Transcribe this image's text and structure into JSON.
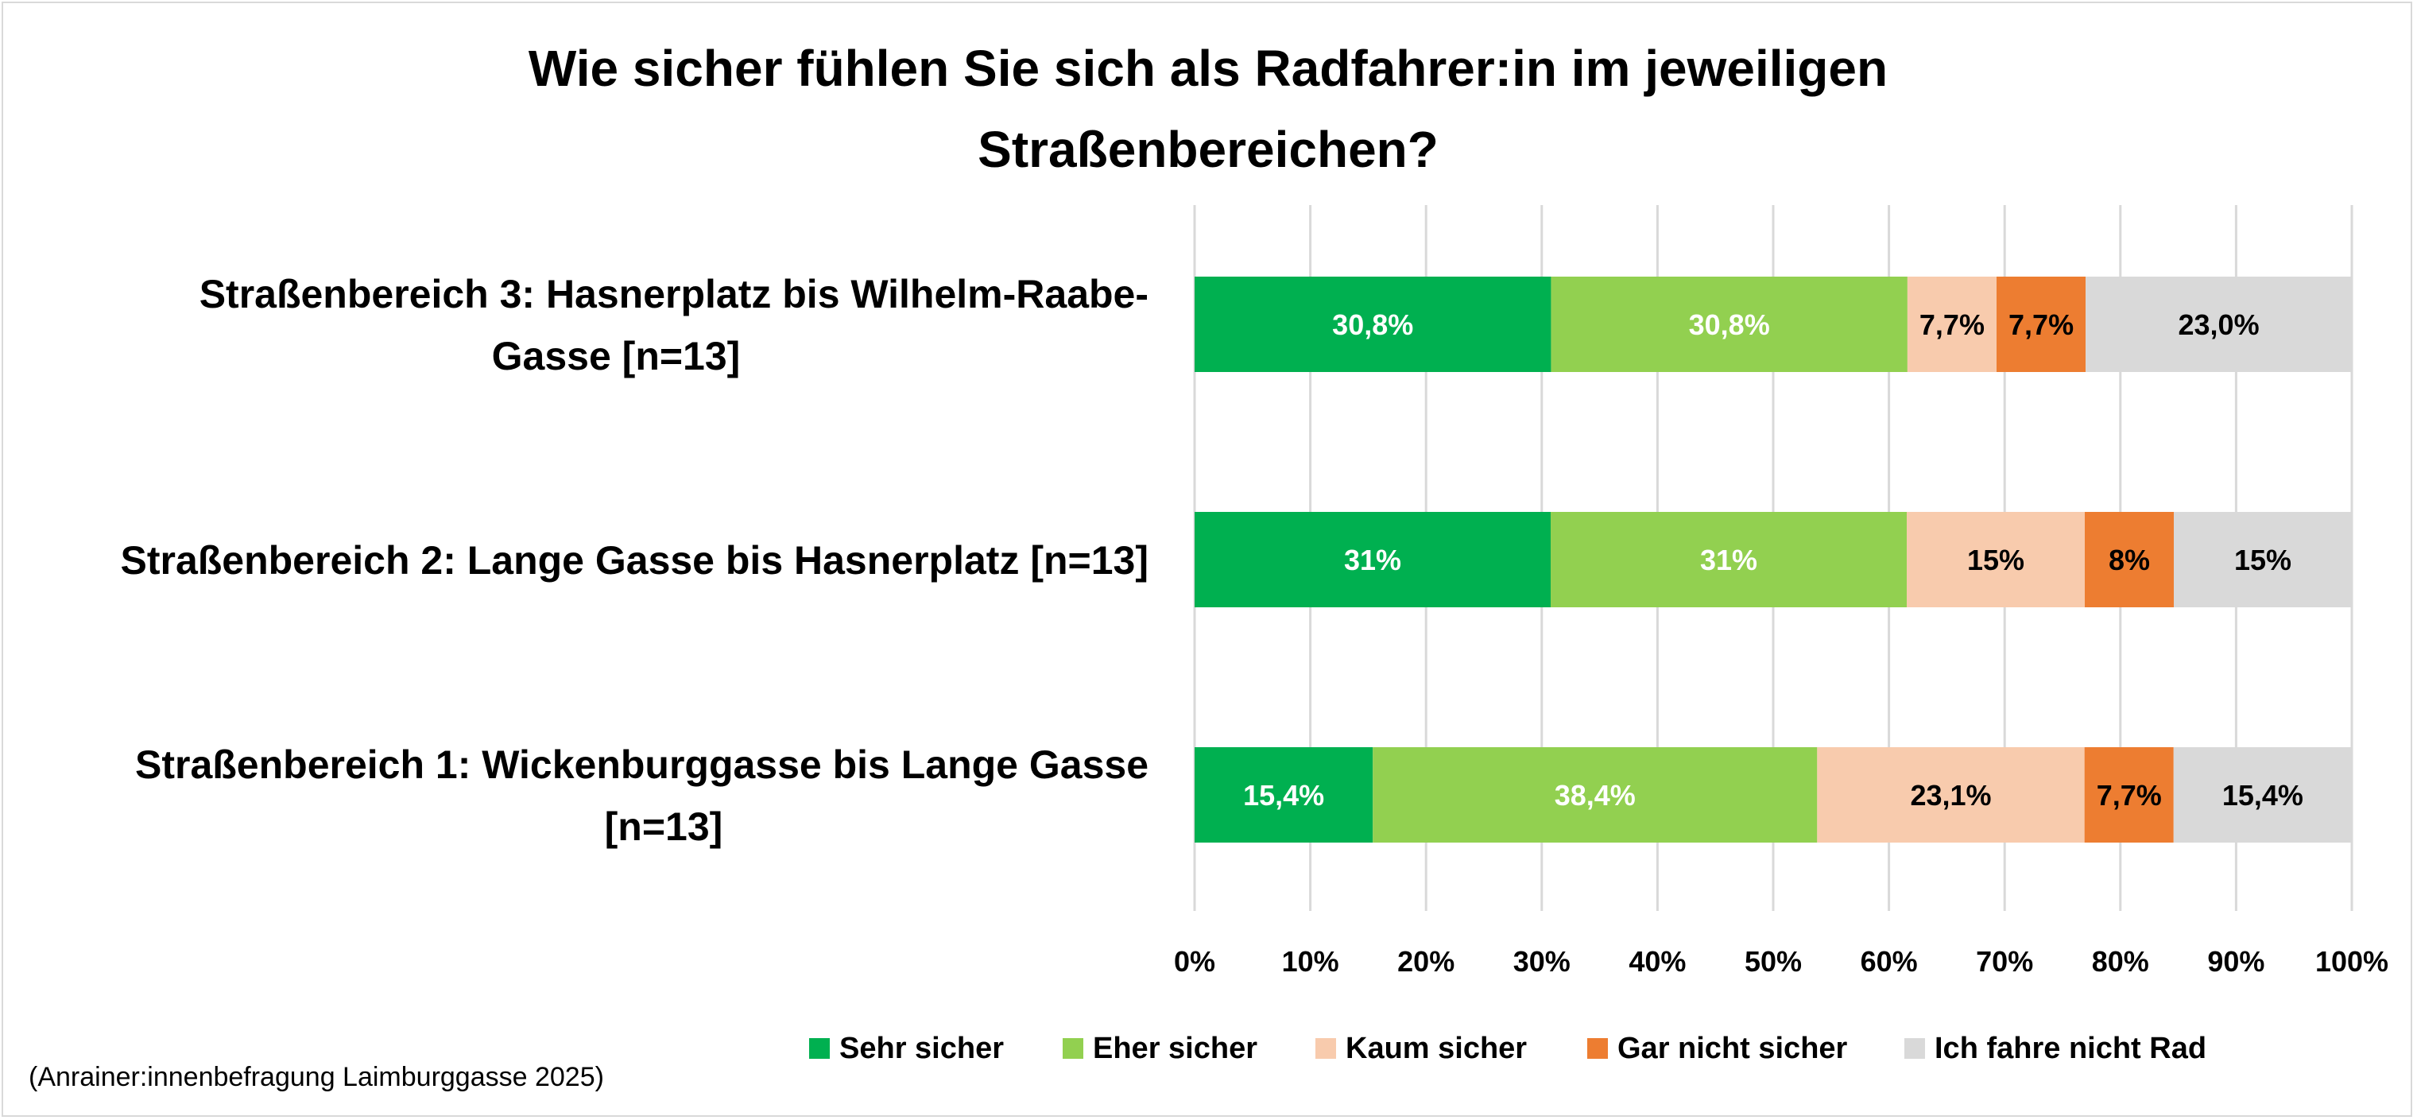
{
  "chart_data": {
    "type": "bar",
    "orientation": "horizontal-stacked-100",
    "title_lines": [
      "Wie sicher fühlen Sie sich als Radfahrer:in im jeweiligen",
      "Straßenbereichen?"
    ],
    "categories": [
      {
        "lines": [
          "Straßenbereich 3: Hasnerplatz bis Wilhelm-Raabe-",
          "Gasse [n=13]"
        ]
      },
      {
        "lines": [
          "Straßenbereich 2: Lange Gasse bis Hasnerplatz [n=13]"
        ]
      },
      {
        "lines": [
          "Straßenbereich 1: Wickenburggasse bis Lange Gasse",
          "[n=13]"
        ]
      }
    ],
    "series": [
      {
        "name": "Sehr sicher",
        "color": "#00b050",
        "label_color": "#ffffff",
        "values": [
          30.8,
          30.8,
          15.4
        ],
        "labels": [
          "30,8%",
          "31%",
          "15,4%"
        ]
      },
      {
        "name": "Eher sicher",
        "color": "#92d050",
        "label_color": "#ffffff",
        "values": [
          30.8,
          30.8,
          38.4
        ],
        "labels": [
          "30,8%",
          "31%",
          "38,4%"
        ]
      },
      {
        "name": "Kaum sicher",
        "color": "#f8cbad",
        "label_color": "#000000",
        "values": [
          7.7,
          15.4,
          23.1
        ],
        "labels": [
          "7,7%",
          "15%",
          "23,1%"
        ]
      },
      {
        "name": "Gar nicht sicher",
        "color": "#ed7d31",
        "label_color": "#000000",
        "values": [
          7.7,
          7.7,
          7.7
        ],
        "labels": [
          "7,7%",
          "8%",
          "7,7%"
        ]
      },
      {
        "name": "Ich fahre nicht Rad",
        "color": "#d9d9d9",
        "label_color": "#000000",
        "values": [
          23.0,
          15.4,
          15.4
        ],
        "labels": [
          "23,0%",
          "15%",
          "15,4%"
        ]
      }
    ],
    "x_ticks": [
      "0%",
      "10%",
      "20%",
      "30%",
      "40%",
      "50%",
      "60%",
      "70%",
      "80%",
      "90%",
      "100%"
    ],
    "xlim": [
      0,
      100
    ],
    "grid": true,
    "gridline_color": "#d9d9d9",
    "legend_position": "bottom",
    "source": "(Anrainer:innenbefragung Laimburggasse 2025)"
  }
}
